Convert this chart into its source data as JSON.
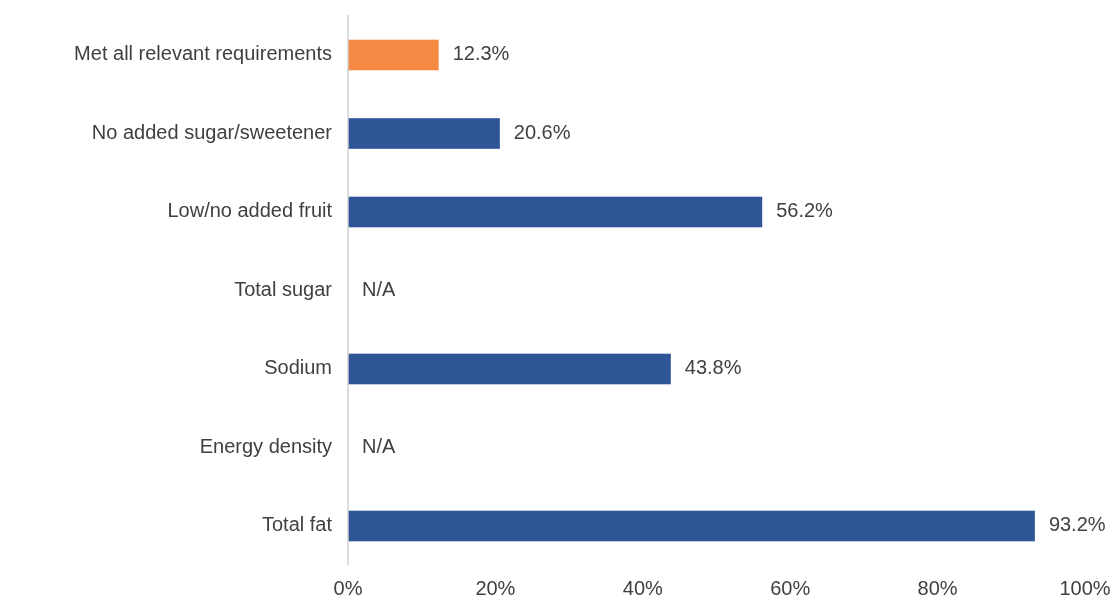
{
  "chart_data": {
    "type": "bar",
    "orientation": "horizontal",
    "categories": [
      "Met all relevant requirements",
      "No added sugar/sweetener",
      "Low/no added fruit",
      "Total sugar",
      "Sodium",
      "Energy density",
      "Total fat"
    ],
    "values": [
      12.3,
      20.6,
      56.2,
      null,
      43.8,
      null,
      93.2
    ],
    "colors": [
      "#f58842",
      "#2e5595",
      "#2e5595",
      null,
      "#2e5595",
      null,
      "#2e5595"
    ],
    "value_labels": [
      "12.3%",
      "20.6%",
      "56.2%",
      "N/A",
      "43.8%",
      "N/A",
      "93.2%"
    ],
    "xlim": [
      0,
      100
    ],
    "xticks": [
      {
        "value": 0,
        "label": "0%"
      },
      {
        "value": 20,
        "label": "20%"
      },
      {
        "value": 40,
        "label": "40%"
      },
      {
        "value": 60,
        "label": "60%"
      },
      {
        "value": 80,
        "label": "80%"
      },
      {
        "value": 100,
        "label": "100%"
      }
    ],
    "grid": false
  }
}
